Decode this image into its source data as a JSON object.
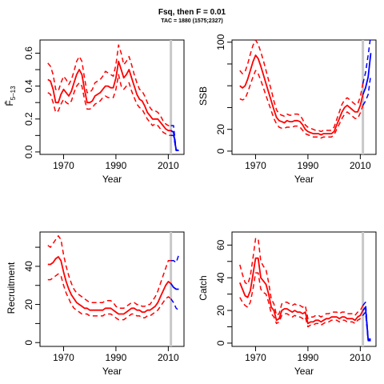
{
  "header": {
    "title": "Fsq, then F = 0.01",
    "subtitle": "TAC = 1880 (1575;2327)"
  },
  "colors": {
    "historical": "#ff0000",
    "projection": "#0000ff",
    "reference_line": "#c8c8c8",
    "axes": "#000000"
  },
  "chart_data": [
    {
      "type": "line",
      "id": "fbar",
      "title": "",
      "xlabel": "Year",
      "ylabel": "F̄5–13",
      "xlim": [
        1961,
        2016
      ],
      "ylim": [
        -0.015,
        0.68
      ],
      "xticks": [
        1970,
        1990,
        2010
      ],
      "yticks": [
        0.0,
        0.1,
        0.2,
        0.3,
        0.4,
        0.5,
        0.6
      ],
      "ytick_labels": [
        "0.0",
        "",
        "0.2",
        "",
        "0.4",
        "",
        "0.6"
      ],
      "vline_x": 2011,
      "historical": {
        "x": [
          1964,
          1965,
          1966,
          1967,
          1968,
          1969,
          1970,
          1971,
          1972,
          1973,
          1974,
          1975,
          1976,
          1977,
          1978,
          1979,
          1980,
          1981,
          1982,
          1983,
          1984,
          1985,
          1986,
          1987,
          1988,
          1989,
          1990,
          1991,
          1992,
          1993,
          1994,
          1995,
          1996,
          1997,
          1998,
          1999,
          2000,
          2001,
          2002,
          2003,
          2004,
          2005,
          2006,
          2007,
          2008,
          2009,
          2010,
          2011
        ],
        "mid": [
          0.44,
          0.43,
          0.38,
          0.3,
          0.3,
          0.35,
          0.38,
          0.36,
          0.34,
          0.37,
          0.42,
          0.47,
          0.5,
          0.47,
          0.38,
          0.3,
          0.3,
          0.31,
          0.34,
          0.35,
          0.36,
          0.38,
          0.4,
          0.4,
          0.39,
          0.39,
          0.45,
          0.55,
          0.5,
          0.45,
          0.47,
          0.5,
          0.45,
          0.4,
          0.35,
          0.32,
          0.31,
          0.28,
          0.24,
          0.22,
          0.2,
          0.2,
          0.2,
          0.18,
          0.16,
          0.14,
          0.13,
          0.13
        ],
        "lower": [
          0.36,
          0.35,
          0.3,
          0.24,
          0.25,
          0.29,
          0.32,
          0.3,
          0.29,
          0.31,
          0.36,
          0.4,
          0.42,
          0.4,
          0.32,
          0.26,
          0.26,
          0.27,
          0.29,
          0.3,
          0.31,
          0.33,
          0.34,
          0.33,
          0.33,
          0.33,
          0.38,
          0.47,
          0.4,
          0.38,
          0.4,
          0.42,
          0.37,
          0.33,
          0.29,
          0.27,
          0.26,
          0.23,
          0.2,
          0.18,
          0.16,
          0.17,
          0.16,
          0.14,
          0.12,
          0.11,
          0.1,
          0.1
        ],
        "upper": [
          0.54,
          0.52,
          0.47,
          0.38,
          0.37,
          0.42,
          0.46,
          0.44,
          0.41,
          0.44,
          0.49,
          0.55,
          0.58,
          0.55,
          0.45,
          0.36,
          0.36,
          0.38,
          0.42,
          0.43,
          0.44,
          0.46,
          0.49,
          0.48,
          0.47,
          0.46,
          0.53,
          0.65,
          0.6,
          0.53,
          0.55,
          0.58,
          0.53,
          0.47,
          0.42,
          0.38,
          0.37,
          0.34,
          0.3,
          0.27,
          0.25,
          0.25,
          0.24,
          0.22,
          0.19,
          0.17,
          0.16,
          0.16
        ]
      },
      "projection": {
        "x": [
          2011,
          2012,
          2013,
          2014
        ],
        "mid": [
          0.13,
          0.12,
          0.01,
          0.01
        ],
        "lower": [
          0.1,
          0.1,
          0.008,
          0.008
        ],
        "upper": [
          0.16,
          0.16,
          0.012,
          0.012
        ]
      }
    },
    {
      "type": "line",
      "id": "ssb",
      "title": "",
      "xlabel": "Year",
      "ylabel": "SSB",
      "xlim": [
        1961,
        2016
      ],
      "ylim": [
        -3,
        102
      ],
      "xticks": [
        1970,
        1990,
        2010
      ],
      "yticks": [
        0,
        20,
        40,
        60,
        80,
        100
      ],
      "ytick_labels": [
        "0",
        "20",
        "",
        "",
        "",
        "100"
      ],
      "vline_x": 2011,
      "historical": {
        "x": [
          1964,
          1965,
          1966,
          1967,
          1968,
          1969,
          1970,
          1971,
          1972,
          1973,
          1974,
          1975,
          1976,
          1977,
          1978,
          1979,
          1980,
          1981,
          1982,
          1983,
          1984,
          1985,
          1986,
          1987,
          1988,
          1989,
          1990,
          1991,
          1992,
          1993,
          1994,
          1995,
          1996,
          1997,
          1998,
          1999,
          2000,
          2001,
          2002,
          2003,
          2004,
          2005,
          2006,
          2007,
          2008,
          2009,
          2010,
          2011
        ],
        "mid": [
          60,
          58,
          60,
          66,
          74,
          82,
          88,
          85,
          78,
          70,
          62,
          54,
          46,
          38,
          31,
          28,
          27,
          26,
          28,
          27,
          27,
          28,
          28,
          27,
          24,
          20,
          18,
          17,
          16,
          16,
          16,
          15,
          16,
          16,
          16,
          16,
          18,
          24,
          30,
          36,
          40,
          42,
          40,
          38,
          36,
          36,
          42,
          52
        ],
        "lower": [
          48,
          47,
          48,
          54,
          61,
          68,
          74,
          71,
          65,
          58,
          51,
          44,
          37,
          30,
          25,
          22,
          21,
          21,
          22,
          22,
          22,
          23,
          23,
          22,
          19,
          16,
          15,
          14,
          13,
          13,
          13,
          12,
          13,
          13,
          13,
          13,
          15,
          20,
          25,
          30,
          34,
          36,
          34,
          32,
          30,
          30,
          35,
          42
        ],
        "upper": [
          74,
          71,
          73,
          80,
          89,
          97,
          102,
          98,
          91,
          83,
          74,
          65,
          56,
          46,
          38,
          34,
          33,
          32,
          34,
          33,
          33,
          34,
          34,
          33,
          29,
          24,
          22,
          21,
          20,
          19,
          19,
          18,
          19,
          19,
          19,
          19,
          22,
          29,
          36,
          43,
          47,
          49,
          47,
          45,
          43,
          43,
          50,
          62
        ]
      },
      "projection": {
        "x": [
          2011,
          2012,
          2013,
          2014
        ],
        "mid": [
          52,
          58,
          68,
          90
        ],
        "lower": [
          42,
          46,
          52,
          70
        ],
        "upper": [
          62,
          72,
          88,
          110
        ]
      }
    },
    {
      "type": "line",
      "id": "recruitment",
      "title": "",
      "xlabel": "Year",
      "ylabel": "Recruitment",
      "xlim": [
        1961,
        2016
      ],
      "ylim": [
        -2,
        58
      ],
      "xticks": [
        1970,
        1990,
        2010
      ],
      "yticks": [
        0,
        10,
        20,
        30,
        40,
        50
      ],
      "ytick_labels": [
        "0",
        "",
        "20",
        "",
        "40",
        ""
      ],
      "vline_x": 2011,
      "historical": {
        "x": [
          1964,
          1965,
          1966,
          1967,
          1968,
          1969,
          1970,
          1971,
          1972,
          1973,
          1974,
          1975,
          1976,
          1977,
          1978,
          1979,
          1980,
          1981,
          1982,
          1983,
          1984,
          1985,
          1986,
          1987,
          1988,
          1989,
          1990,
          1991,
          1992,
          1993,
          1994,
          1995,
          1996,
          1997,
          1998,
          1999,
          2000,
          2001,
          2002,
          2003,
          2004,
          2005,
          2006,
          2007,
          2008,
          2009,
          2010,
          2011
        ],
        "mid": [
          41,
          41,
          42,
          44,
          45,
          43,
          37,
          32,
          28,
          25,
          23,
          21,
          20,
          19,
          18,
          18,
          17,
          17,
          17,
          17,
          17,
          17,
          18,
          18,
          18,
          17,
          16,
          15,
          15,
          15,
          16,
          17,
          18,
          18,
          17,
          17,
          16,
          16,
          17,
          17,
          18,
          19,
          21,
          24,
          27,
          30,
          32,
          31
        ],
        "lower": [
          33,
          33,
          34,
          35,
          36,
          35,
          30,
          26,
          23,
          20,
          18,
          17,
          16,
          15,
          15,
          15,
          14,
          14,
          14,
          14,
          14,
          14,
          15,
          15,
          15,
          14,
          13,
          12,
          12,
          12,
          13,
          14,
          15,
          15,
          14,
          14,
          13,
          13,
          14,
          14,
          15,
          16,
          17,
          19,
          21,
          23,
          24,
          23
        ],
        "upper": [
          51,
          50,
          52,
          54,
          56,
          54,
          46,
          40,
          35,
          31,
          28,
          26,
          25,
          24,
          23,
          22,
          21,
          21,
          21,
          21,
          21,
          21,
          22,
          22,
          22,
          21,
          19,
          18,
          18,
          18,
          19,
          20,
          21,
          21,
          20,
          20,
          19,
          19,
          20,
          20,
          22,
          24,
          27,
          31,
          35,
          39,
          43,
          43
        ]
      },
      "projection": {
        "x": [
          2011,
          2012,
          2013,
          2014
        ],
        "mid": [
          31,
          29,
          28,
          28
        ],
        "lower": [
          23,
          21,
          18,
          17
        ],
        "upper": [
          43,
          43,
          42,
          46
        ]
      }
    },
    {
      "type": "line",
      "id": "catch",
      "title": "",
      "xlabel": "Year",
      "ylabel": "Catch",
      "xlim": [
        1961,
        2016
      ],
      "ylim": [
        -2,
        68
      ],
      "xticks": [
        1970,
        1990,
        2010
      ],
      "yticks": [
        0,
        10,
        20,
        30,
        40,
        50,
        60
      ],
      "ytick_labels": [
        "0",
        "",
        "20",
        "",
        "40",
        "",
        "60"
      ],
      "vline_x": 2011,
      "historical": {
        "x": [
          1964,
          1965,
          1966,
          1967,
          1968,
          1969,
          1970,
          1971,
          1972,
          1973,
          1974,
          1975,
          1976,
          1977,
          1978,
          1979,
          1980,
          1981,
          1982,
          1983,
          1984,
          1985,
          1986,
          1987,
          1988,
          1989,
          1990,
          1991,
          1992,
          1993,
          1994,
          1995,
          1996,
          1997,
          1998,
          1999,
          2000,
          2001,
          2002,
          2003,
          2004,
          2005,
          2006,
          2007,
          2008,
          2009,
          2010,
          2011
        ],
        "mid": [
          37,
          33,
          29,
          28,
          32,
          42,
          52,
          52,
          40,
          38,
          36,
          30,
          22,
          20,
          14,
          15,
          20,
          21,
          21,
          20,
          19,
          20,
          19,
          19,
          18,
          19,
          12,
          13,
          13,
          14,
          14,
          13,
          14,
          15,
          15,
          16,
          16,
          16,
          15,
          16,
          16,
          15,
          15,
          15,
          14,
          16,
          17,
          20
        ],
        "lower": [
          28,
          25,
          23,
          22,
          25,
          33,
          43,
          43,
          33,
          31,
          30,
          25,
          18,
          16,
          12,
          13,
          17,
          18,
          18,
          17,
          16,
          17,
          16,
          16,
          15,
          16,
          10,
          11,
          11,
          12,
          12,
          11,
          12,
          13,
          13,
          14,
          14,
          14,
          13,
          14,
          14,
          13,
          13,
          13,
          12,
          14,
          15,
          17
        ],
        "upper": [
          48,
          42,
          37,
          36,
          41,
          52,
          64,
          64,
          50,
          47,
          45,
          37,
          27,
          24,
          17,
          18,
          24,
          25,
          25,
          24,
          23,
          24,
          23,
          23,
          22,
          23,
          15,
          16,
          16,
          17,
          17,
          16,
          17,
          18,
          18,
          19,
          19,
          19,
          18,
          19,
          19,
          18,
          18,
          18,
          17,
          19,
          20,
          23
        ]
      },
      "projection": {
        "x": [
          2011,
          2012,
          2013,
          2014
        ],
        "mid": [
          20,
          22,
          2,
          2
        ],
        "lower": [
          17,
          19,
          1.5,
          1.5
        ],
        "upper": [
          23,
          25,
          2.5,
          2.5
        ]
      }
    }
  ]
}
